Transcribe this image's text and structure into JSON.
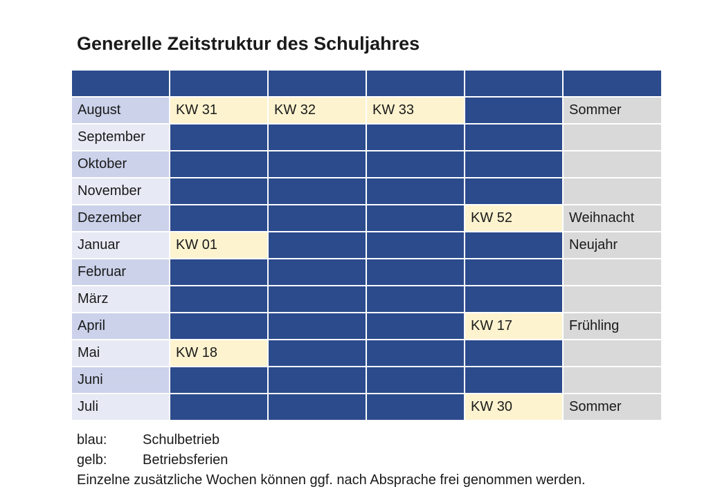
{
  "title": "Generelle Zeitstruktur des Schuljahres",
  "colors": {
    "blue": "#2c4b8c",
    "yellow": "#fdf3cf",
    "grey": "#d9d9d9",
    "month_dark": "#cbd2ea",
    "month_light": "#e7eaf5"
  },
  "rows": [
    {
      "month": "August",
      "weeks": [
        {
          "type": "yellow",
          "label": "KW 31"
        },
        {
          "type": "yellow",
          "label": "KW 32"
        },
        {
          "type": "yellow",
          "label": "KW 33"
        },
        {
          "type": "blue",
          "label": ""
        }
      ],
      "note": "Sommer"
    },
    {
      "month": "September",
      "weeks": [
        {
          "type": "blue",
          "label": ""
        },
        {
          "type": "blue",
          "label": ""
        },
        {
          "type": "blue",
          "label": ""
        },
        {
          "type": "blue",
          "label": ""
        }
      ],
      "note": ""
    },
    {
      "month": "Oktober",
      "weeks": [
        {
          "type": "blue",
          "label": ""
        },
        {
          "type": "blue",
          "label": ""
        },
        {
          "type": "blue",
          "label": ""
        },
        {
          "type": "blue",
          "label": ""
        }
      ],
      "note": ""
    },
    {
      "month": "November",
      "weeks": [
        {
          "type": "blue",
          "label": ""
        },
        {
          "type": "blue",
          "label": ""
        },
        {
          "type": "blue",
          "label": ""
        },
        {
          "type": "blue",
          "label": ""
        }
      ],
      "note": ""
    },
    {
      "month": "Dezember",
      "weeks": [
        {
          "type": "blue",
          "label": ""
        },
        {
          "type": "blue",
          "label": ""
        },
        {
          "type": "blue",
          "label": ""
        },
        {
          "type": "yellow",
          "label": "KW 52"
        }
      ],
      "note": "Weihnacht"
    },
    {
      "month": "Januar",
      "weeks": [
        {
          "type": "yellow",
          "label": "KW 01"
        },
        {
          "type": "blue",
          "label": ""
        },
        {
          "type": "blue",
          "label": ""
        },
        {
          "type": "blue",
          "label": ""
        }
      ],
      "note": "Neujahr"
    },
    {
      "month": "Februar",
      "weeks": [
        {
          "type": "blue",
          "label": ""
        },
        {
          "type": "blue",
          "label": ""
        },
        {
          "type": "blue",
          "label": ""
        },
        {
          "type": "blue",
          "label": ""
        }
      ],
      "note": ""
    },
    {
      "month": "März",
      "weeks": [
        {
          "type": "blue",
          "label": ""
        },
        {
          "type": "blue",
          "label": ""
        },
        {
          "type": "blue",
          "label": ""
        },
        {
          "type": "blue",
          "label": ""
        }
      ],
      "note": ""
    },
    {
      "month": "April",
      "weeks": [
        {
          "type": "blue",
          "label": ""
        },
        {
          "type": "blue",
          "label": ""
        },
        {
          "type": "blue",
          "label": ""
        },
        {
          "type": "yellow",
          "label": "KW 17"
        }
      ],
      "note": "Frühling"
    },
    {
      "month": "Mai",
      "weeks": [
        {
          "type": "yellow",
          "label": "KW 18"
        },
        {
          "type": "blue",
          "label": ""
        },
        {
          "type": "blue",
          "label": ""
        },
        {
          "type": "blue",
          "label": ""
        }
      ],
      "note": ""
    },
    {
      "month": "Juni",
      "weeks": [
        {
          "type": "blue",
          "label": ""
        },
        {
          "type": "blue",
          "label": ""
        },
        {
          "type": "blue",
          "label": ""
        },
        {
          "type": "blue",
          "label": ""
        }
      ],
      "note": ""
    },
    {
      "month": "Juli",
      "weeks": [
        {
          "type": "blue",
          "label": ""
        },
        {
          "type": "blue",
          "label": ""
        },
        {
          "type": "blue",
          "label": ""
        },
        {
          "type": "yellow",
          "label": "KW 30"
        }
      ],
      "note": "Sommer"
    }
  ],
  "legend": [
    {
      "key": "blau:",
      "text": "Schulbetrieb"
    },
    {
      "key": "gelb:",
      "text": "Betriebsferien"
    }
  ],
  "note": "Einzelne zusätzliche Wochen können ggf. nach Absprache frei genommen werden."
}
